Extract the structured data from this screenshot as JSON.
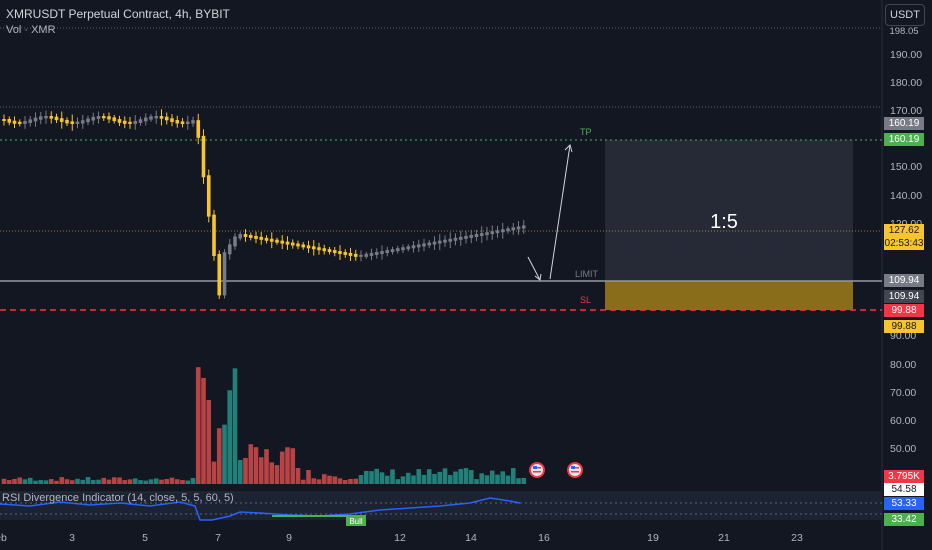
{
  "header": {
    "title": "XMRUSDT Perpetual Contract, 4h, BYBIT",
    "volume_label": "Vol · XMR",
    "currency_button": "USDT"
  },
  "price_axis": [
    "190.00",
    "180.00",
    "170.00",
    "150.00",
    "140.00",
    "120.00",
    "90.00",
    "80.00",
    "70.00",
    "60.00",
    "50.00"
  ],
  "price_axis_top": "198.05",
  "time_axis": [
    "eb",
    "3",
    "5",
    "7",
    "9",
    "12",
    "14",
    "16",
    "19",
    "21",
    "23"
  ],
  "levels": {
    "tp_label": "TP",
    "limit_label": "LIMIT",
    "sl_label": "SL",
    "ratio": "1:5"
  },
  "price_tags": {
    "tp_price_a": "160.19",
    "tp_price_b": "160.19",
    "current_price": "127.62",
    "countdown": "02:53:43",
    "limit_a": "109.94",
    "limit_b": "109.94",
    "sl_a": "99.88",
    "sl_b": "99.88",
    "volume": "3.795K",
    "rsi_a": "54.58",
    "rsi_b": "53.33",
    "rsi_c": "33.42"
  },
  "rsi": {
    "title": "RSI Divergence Indicator (14, close, 5, 5, 60, 5)",
    "bull_label": "Bull"
  },
  "colors": {
    "background": "#131722",
    "bull_candle": "#787b86",
    "bear_candle": "#f7c52b",
    "volume_up": "#26a69a",
    "volume_down": "#ef5350",
    "tp": "#4caf50",
    "sl": "#f23645",
    "stop_zone": "#8a6d1a",
    "profit_zone": "#2a2e39",
    "rsi_line": "#2962ff"
  },
  "icons": [
    "us-flag-event-icon",
    "us-flag-event-icon"
  ]
}
